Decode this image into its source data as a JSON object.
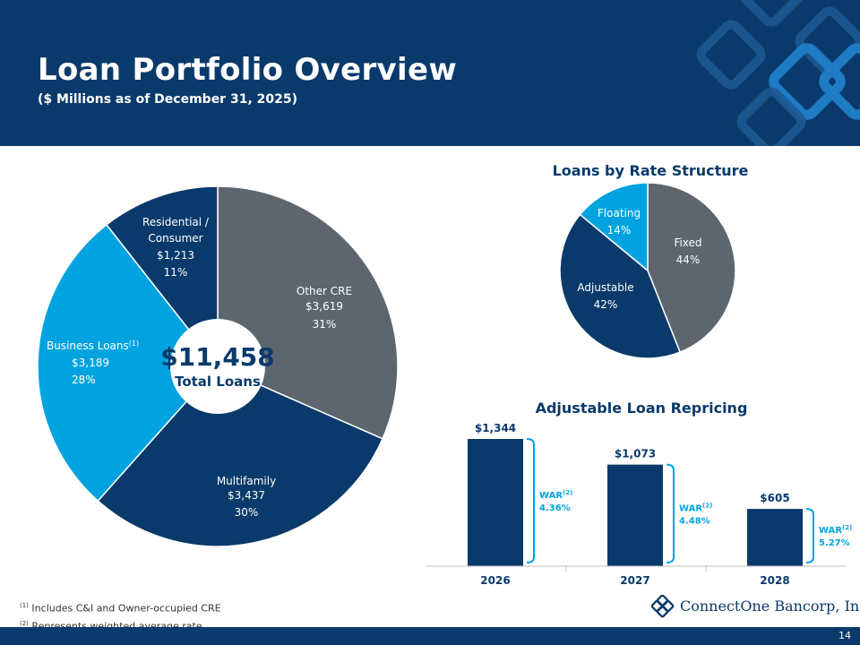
{
  "header": {
    "title": "Loan Portfolio Overview",
    "subtitle": "($ Millions as of December 31, 2025)"
  },
  "colors": {
    "navy": "#0a3a6b",
    "gray": "#5d666e",
    "light_blue": "#00a3e0",
    "war_bracket": "#00a3e0"
  },
  "chart_data": [
    {
      "type": "pie",
      "variant": "donut",
      "title": "",
      "center_value": "$11,458",
      "center_label": "Total Loans",
      "slices": [
        {
          "label": "Other CRE",
          "value": 3619,
          "value_label": "$3,619",
          "percent": "31%",
          "color": "#5d666e"
        },
        {
          "label": "Multifamily",
          "value": 3437,
          "value_label": "$3,437",
          "percent": "30%",
          "color": "#0a3a6b"
        },
        {
          "label": "Business Loans",
          "footnote": "(1)",
          "value": 3189,
          "value_label": "$3,189",
          "percent": "28%",
          "color": "#00a3e0"
        },
        {
          "label": "Residential / Consumer",
          "label_lines": [
            "Residential /",
            "Consumer"
          ],
          "value": 1213,
          "value_label": "$1,213",
          "percent": "11%",
          "color": "#0a3a6b"
        }
      ]
    },
    {
      "type": "pie",
      "title": "Loans by Rate Structure",
      "slices": [
        {
          "label": "Fixed",
          "value": 44,
          "percent": "44%",
          "color": "#5d666e"
        },
        {
          "label": "Adjustable",
          "value": 42,
          "percent": "42%",
          "color": "#0a3a6b"
        },
        {
          "label": "Floating",
          "value": 14,
          "percent": "14%",
          "color": "#00a3e0"
        }
      ]
    },
    {
      "type": "bar",
      "title": "Adjustable Loan Repricing",
      "categories": [
        "2026",
        "2027",
        "2028"
      ],
      "values": [
        1344,
        1073,
        605
      ],
      "value_labels": [
        "$1,344",
        "$1,073",
        "$605"
      ],
      "ylim": [
        0,
        1344
      ],
      "grid": false,
      "annotations": [
        {
          "label": "WAR",
          "footnote": "(2)",
          "value": "4.36%"
        },
        {
          "label": "WAR",
          "footnote": "(2)",
          "value": "4.48%"
        },
        {
          "label": "WAR",
          "footnote": "(2)",
          "value": "5.27%"
        }
      ]
    }
  ],
  "footnotes": [
    {
      "marker": "(1)",
      "text": "Includes C&I and Owner-occupied CRE"
    },
    {
      "marker": "(2)",
      "text": "Represents weighted average rate"
    }
  ],
  "logo": {
    "text": "ConnectOne Bancorp, Inc.",
    "icon": "diamond-logo-icon"
  },
  "page_number": "14"
}
